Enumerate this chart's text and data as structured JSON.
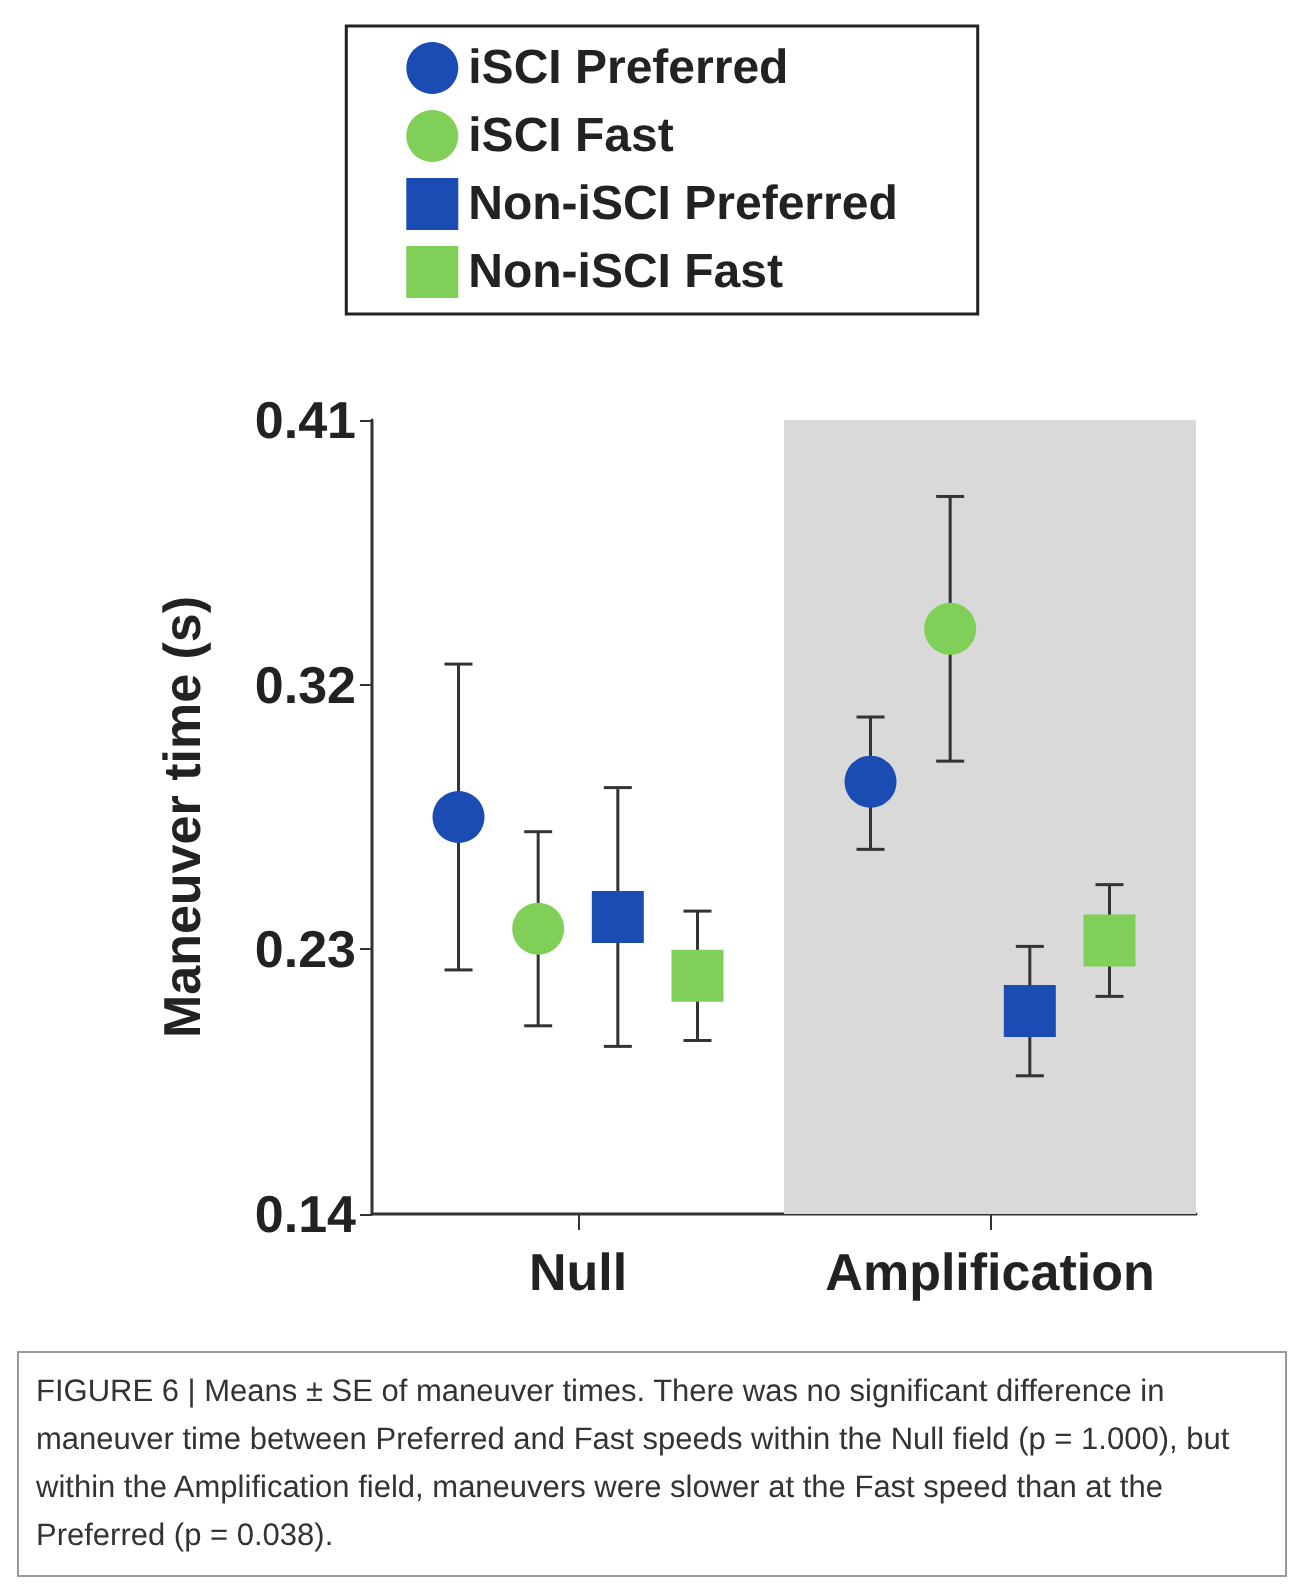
{
  "chart_data": {
    "type": "scatter",
    "categories": [
      "Null",
      "Amplification"
    ],
    "ylabel": "Maneuver time (s)",
    "ylim": [
      0.14,
      0.41
    ],
    "yticks": [
      0.14,
      0.23,
      0.32,
      0.41
    ],
    "grid": false,
    "legend": "top",
    "series": [
      {
        "name": "iSCI Preferred",
        "color": "#1b4cb4",
        "marker": "circle",
        "values": [
          0.275,
          0.287
        ],
        "errors": [
          [
            0.223,
            0.327
          ],
          [
            0.264,
            0.309
          ]
        ]
      },
      {
        "name": "iSCI Fast",
        "color": "#7fcf58",
        "marker": "circle",
        "values": [
          0.237,
          0.339
        ],
        "errors": [
          [
            0.204,
            0.27
          ],
          [
            0.294,
            0.384
          ]
        ]
      },
      {
        "name": "Non-iSCI Preferred",
        "color": "#1b4cb4",
        "marker": "square",
        "values": [
          0.241,
          0.209
        ],
        "errors": [
          [
            0.197,
            0.285
          ],
          [
            0.187,
            0.231
          ]
        ]
      },
      {
        "name": "Non-iSCI Fast",
        "color": "#7fcf58",
        "marker": "square",
        "values": [
          0.221,
          0.233
        ],
        "errors": [
          [
            0.199,
            0.243
          ],
          [
            0.214,
            0.252
          ]
        ]
      }
    ],
    "bands": [
      {
        "axis": "x",
        "from": "Amplification",
        "to": "Amplification",
        "color": "#d9d9d9"
      }
    ],
    "annotations": [
      "FIGURE 6 | Means ± SE of maneuver times. There was no significant difference in maneuver time between Preferred and Fast speeds within the Null field (p = 1.000), but within the Amplification field, maneuvers were slower at the Fast speed than at the Preferred (p = 0.038)."
    ]
  }
}
